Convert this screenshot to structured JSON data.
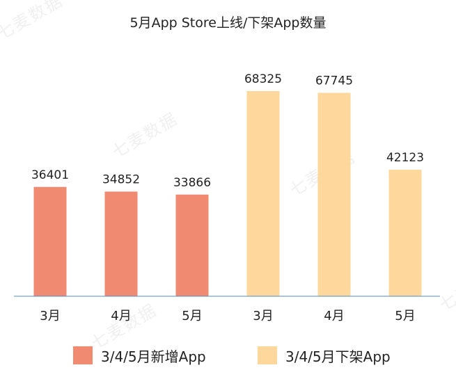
{
  "chart_data": {
    "type": "bar",
    "title": "5月App Store上线/下架App数量",
    "categories": [
      "3月",
      "4月",
      "5月",
      "3月",
      "4月",
      "5月"
    ],
    "values": [
      36401,
      34852,
      33866,
      68325,
      67745,
      42123
    ],
    "series": [
      {
        "name": "3/4/5月新增App",
        "color": "#f08a70",
        "indices": [
          0,
          1,
          2
        ]
      },
      {
        "name": "3/4/5月下架App",
        "color": "#fdd79b",
        "indices": [
          3,
          4,
          5
        ]
      }
    ],
    "ylim": [
      0,
      80000
    ],
    "grid": false,
    "legend_position": "bottom",
    "axis_color": "#4f8fcf"
  },
  "watermark": {
    "text": "七麦数据"
  }
}
